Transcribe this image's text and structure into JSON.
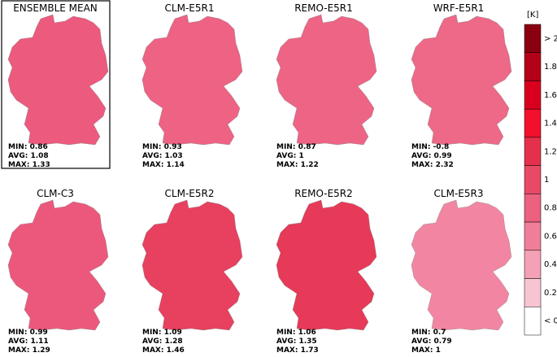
{
  "panels": [
    {
      "title": "ENSEMBLE MEAN",
      "color": "#ec5a7e",
      "boxed": true,
      "stats": [
        "MIN: 0.86",
        "AVG: 1.08",
        "MAX: 1.33"
      ]
    },
    {
      "title": "CLM-E5R1",
      "color": "#ee6283",
      "stats": [
        "MIN: 0.93",
        "AVG: 1.03",
        "MAX: 1.14"
      ]
    },
    {
      "title": "REMO-E5R1",
      "color": "#ee6485",
      "stats": [
        "MIN: 0.87",
        "AVG: 1",
        "MAX: 1.22"
      ]
    },
    {
      "title": "WRF-E5R1",
      "color": "#ee6888",
      "stats": [
        "MIN: -0.8",
        "AVG: 0.99",
        "MAX: 2.32"
      ]
    },
    {
      "title": "CLM-C3",
      "color": "#ec587c",
      "stats": [
        "MIN: 0.99",
        "AVG: 1.11",
        "MAX: 1.29"
      ]
    },
    {
      "title": "CLM-E5R2",
      "color": "#e8405f",
      "stats": [
        "MIN: 1.09",
        "AVG: 1.28",
        "MAX: 1.46"
      ]
    },
    {
      "title": "REMO-E5R2",
      "color": "#e63a58",
      "stats": [
        "MIN: 1.06",
        "AVG: 1.35",
        "MAX: 1.73"
      ]
    },
    {
      "title": "CLM-E5R3",
      "color": "#f286a2",
      "stats": [
        "MIN: 0.7",
        "AVG: 0.79",
        "MAX: 1"
      ]
    }
  ],
  "colorbar": {
    "unit": "[K]",
    "labels": [
      "> 2",
      "1.8",
      "1.6",
      "1.4",
      "1.2",
      "1",
      "0.8",
      "0.6",
      "0.4",
      "0.2",
      "< 0"
    ],
    "colors": [
      "#8b0010",
      "#b5001a",
      "#d9001e",
      "#f2102c",
      "#e5304c",
      "#e84a66",
      "#ec6080",
      "#f07e9a",
      "#f4a0b6",
      "#f8c4d2",
      "#ffffff"
    ]
  }
}
